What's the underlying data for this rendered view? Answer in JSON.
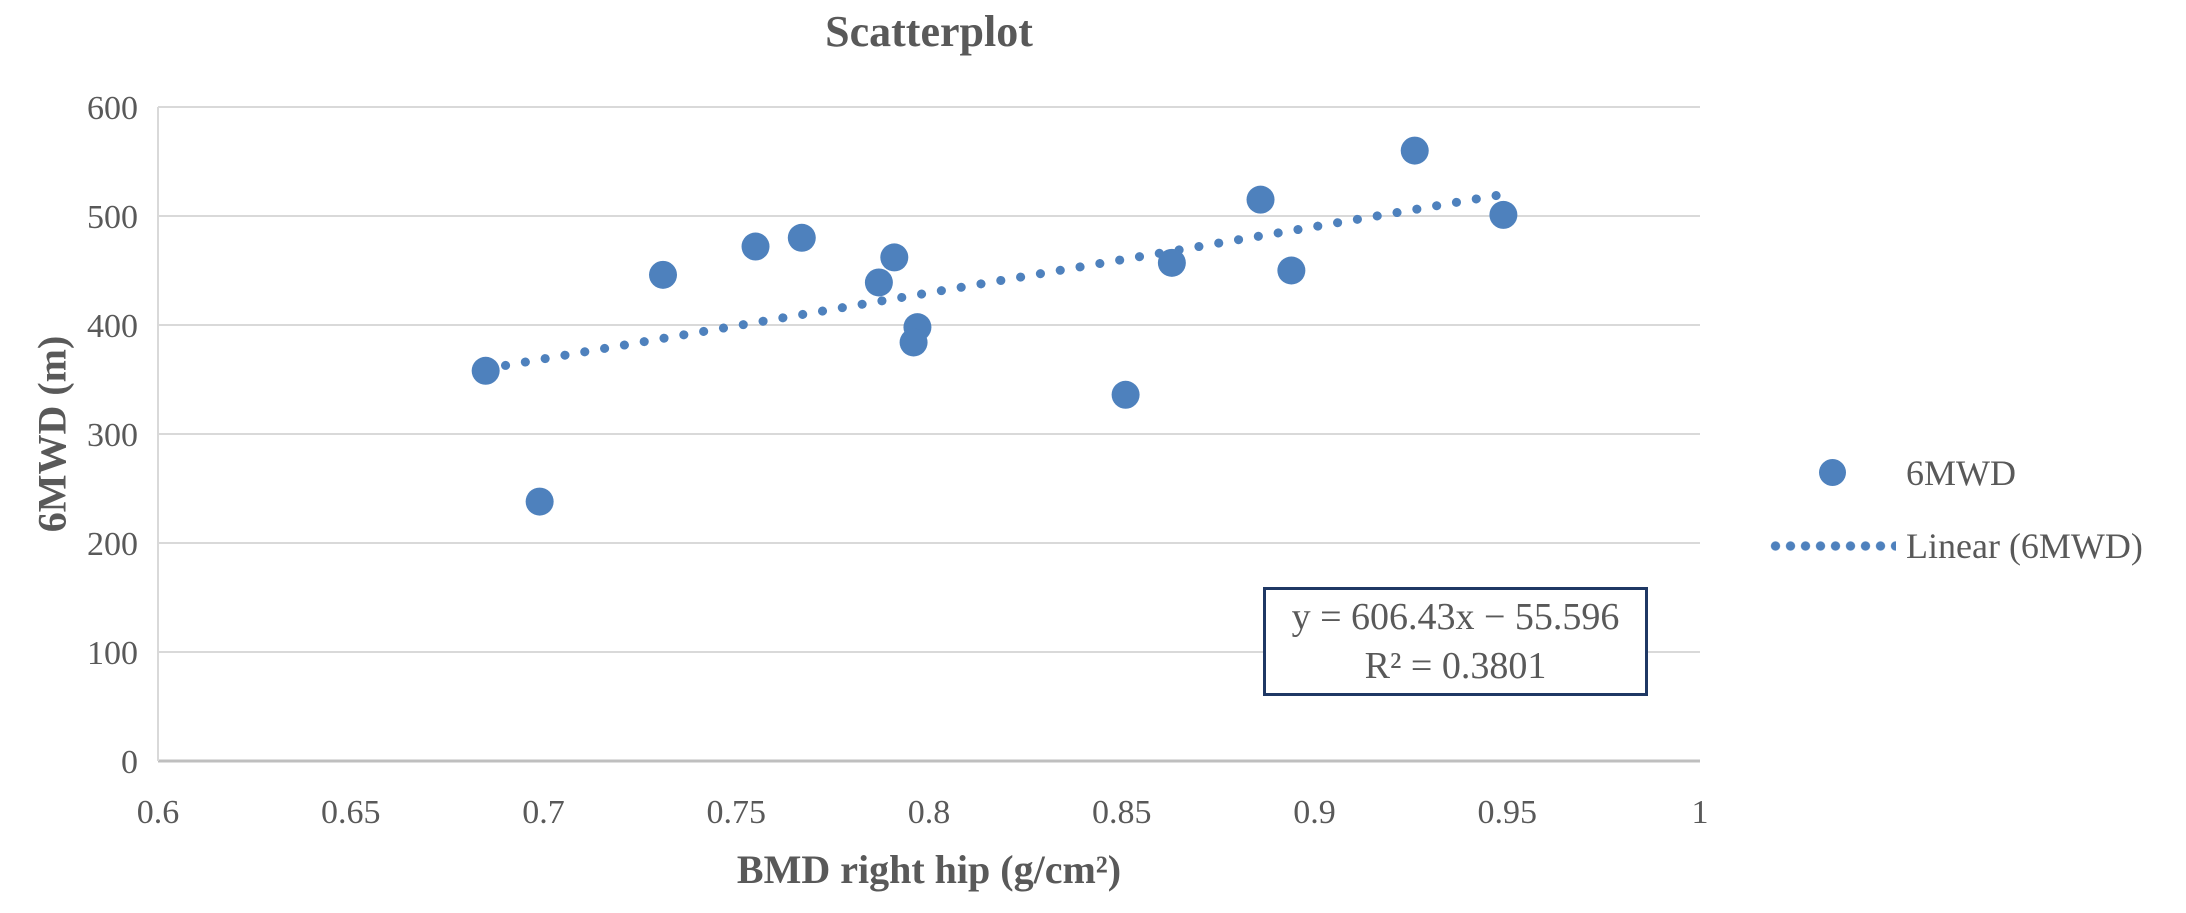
{
  "title": "Scatterplot",
  "colors": {
    "series_blue": "#4e81bd",
    "text_gray": "#595959",
    "gridline_gray": "#d9d9d9",
    "axis_gray": "#bfbfbf",
    "equation_border_navy": "#1f3864",
    "background": "#ffffff"
  },
  "chart_data": {
    "type": "scatter",
    "title": "Scatterplot",
    "xlabel": "BMD right hip (g/cm²)",
    "ylabel": "6MWD (m)",
    "xlim": [
      0.6,
      1.0
    ],
    "ylim": [
      0,
      600
    ],
    "x_tick_labels": [
      "0.6",
      "0.65",
      "0.7",
      "0.75",
      "0.8",
      "0.85",
      "0.9",
      "0.95",
      "1"
    ],
    "x_tick_values": [
      0.6,
      0.65,
      0.7,
      0.75,
      0.8,
      0.85,
      0.9,
      0.95,
      1.0
    ],
    "y_tick_labels": [
      "0",
      "100",
      "200",
      "300",
      "400",
      "500",
      "600"
    ],
    "y_tick_values": [
      0,
      100,
      200,
      300,
      400,
      500,
      600
    ],
    "grid": "horizontal",
    "legend_position": "right-middle",
    "series": [
      {
        "name": "6MWD",
        "type": "scatter",
        "marker": "circle",
        "points": [
          {
            "x": 0.685,
            "y": 358
          },
          {
            "x": 0.699,
            "y": 238
          },
          {
            "x": 0.731,
            "y": 446
          },
          {
            "x": 0.755,
            "y": 472
          },
          {
            "x": 0.767,
            "y": 480
          },
          {
            "x": 0.787,
            "y": 439
          },
          {
            "x": 0.791,
            "y": 462
          },
          {
            "x": 0.797,
            "y": 398
          },
          {
            "x": 0.796,
            "y": 384
          },
          {
            "x": 0.851,
            "y": 336
          },
          {
            "x": 0.863,
            "y": 457
          },
          {
            "x": 0.886,
            "y": 515
          },
          {
            "x": 0.894,
            "y": 450
          },
          {
            "x": 0.926,
            "y": 560
          },
          {
            "x": 0.949,
            "y": 501
          }
        ]
      },
      {
        "name": "Linear (6MWD)",
        "type": "trendline",
        "line_style": "dotted",
        "slope": 606.43,
        "intercept": -55.596,
        "x_range": [
          0.685,
          0.949
        ]
      }
    ],
    "annotation": {
      "equation": "y = 606.43x − 55.596",
      "r_squared": "R² = 0.3801"
    }
  },
  "legend": {
    "items": [
      {
        "label": "6MWD",
        "marker": "dot"
      },
      {
        "label": "Linear (6MWD)",
        "marker": "dotted-line"
      }
    ]
  }
}
